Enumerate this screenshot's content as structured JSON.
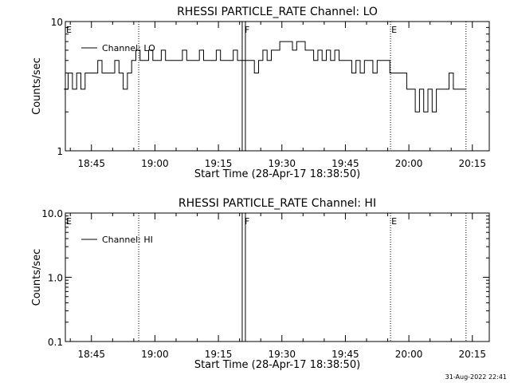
{
  "timestamp": "31-Aug-2022 22:41",
  "chart_data": [
    {
      "type": "line",
      "title": "RHESSI PARTICLE_RATE Channel: LO",
      "xlabel": "Start Time (28-Apr-17 18:38:50)",
      "ylabel": "Counts/sec",
      "y_scale": "log",
      "ylim": [
        1,
        10
      ],
      "y_ticks": [
        1,
        10
      ],
      "y_tick_labels": [
        "1",
        "10"
      ],
      "xlim": [
        "18:38:50",
        "20:19:00"
      ],
      "x_ticks": [
        "18:45",
        "19:00",
        "19:15",
        "19:30",
        "19:45",
        "20:00",
        "20:15"
      ],
      "legend": {
        "entries": [
          "Channel: LO"
        ],
        "placement": "top-left"
      },
      "series": [
        {
          "name": "Channel: LO",
          "x": [
            "18:39",
            "18:40",
            "18:41",
            "18:42",
            "18:43",
            "18:44",
            "18:45",
            "18:46",
            "18:47",
            "18:48",
            "18:49",
            "18:50",
            "18:51",
            "18:52",
            "18:53",
            "18:54",
            "18:55",
            "18:56",
            "18:57",
            "18:58",
            "18:59",
            "19:00",
            "19:01",
            "19:02",
            "19:03",
            "19:04",
            "19:05",
            "19:06",
            "19:07",
            "19:08",
            "19:09",
            "19:10",
            "19:11",
            "19:12",
            "19:13",
            "19:14",
            "19:15",
            "19:16",
            "19:17",
            "19:18",
            "19:19",
            "19:20",
            "19:21",
            "19:22",
            "19:23",
            "19:24",
            "19:25",
            "19:26",
            "19:27",
            "19:28",
            "19:29",
            "19:30",
            "19:31",
            "19:32",
            "19:33",
            "19:34",
            "19:35",
            "19:36",
            "19:37",
            "19:38",
            "19:39",
            "19:40",
            "19:41",
            "19:42",
            "19:43",
            "19:44",
            "19:45",
            "19:46",
            "19:47",
            "19:48",
            "19:49",
            "19:50",
            "19:51",
            "19:52",
            "19:53",
            "19:54",
            "19:55",
            "19:56",
            "19:57",
            "19:58",
            "19:59",
            "20:00",
            "20:01",
            "20:02",
            "20:03",
            "20:04",
            "20:05",
            "20:06",
            "20:07",
            "20:08",
            "20:09",
            "20:10",
            "20:11",
            "20:12",
            "20:13"
          ],
          "values": [
            3,
            4,
            3,
            4,
            3,
            4,
            4,
            4,
            5,
            4,
            4,
            4,
            5,
            4,
            3,
            4,
            5,
            6,
            5,
            5,
            6,
            5,
            5,
            6,
            5,
            5,
            5,
            5,
            6,
            5,
            5,
            5,
            6,
            5,
            5,
            5,
            6,
            5,
            5,
            5,
            6,
            5,
            5,
            5,
            5,
            4,
            5,
            6,
            5,
            6,
            6,
            7,
            7,
            7,
            6,
            7,
            7,
            6,
            6,
            5,
            6,
            5,
            6,
            5,
            6,
            5,
            5,
            5,
            4,
            5,
            4,
            5,
            5,
            4,
            5,
            5,
            5,
            4,
            4,
            4,
            4,
            3,
            3,
            2,
            3,
            2,
            3,
            2,
            3,
            3,
            3,
            4,
            3,
            3,
            3
          ]
        }
      ],
      "annotations": [
        {
          "label": "E",
          "time": "18:38:50"
        },
        {
          "label": "",
          "time": "18:56:10"
        },
        {
          "label": "F",
          "time": "19:21:00"
        },
        {
          "label": "E",
          "time": "19:55:40"
        },
        {
          "label": "",
          "time": "20:13:30"
        }
      ]
    },
    {
      "type": "line",
      "title": "RHESSI PARTICLE_RATE Channel: HI",
      "xlabel": "Start Time (28-Apr-17 18:38:50)",
      "ylabel": "Counts/sec",
      "y_scale": "log",
      "ylim": [
        0.1,
        10
      ],
      "y_ticks": [
        0.1,
        1,
        10
      ],
      "y_tick_labels": [
        "0.1",
        "1.0",
        "10.0"
      ],
      "xlim": [
        "18:38:50",
        "20:19:00"
      ],
      "x_ticks": [
        "18:45",
        "19:00",
        "19:15",
        "19:30",
        "19:45",
        "20:00",
        "20:15"
      ],
      "legend": {
        "entries": [
          "Channel: HI"
        ],
        "placement": "top-left"
      },
      "series": [
        {
          "name": "Channel: HI",
          "x": [],
          "values": []
        }
      ],
      "annotations": [
        {
          "label": "E",
          "time": "18:38:50"
        },
        {
          "label": "",
          "time": "18:56:10"
        },
        {
          "label": "F",
          "time": "19:21:00"
        },
        {
          "label": "E",
          "time": "19:55:40"
        },
        {
          "label": "",
          "time": "20:13:30"
        }
      ]
    }
  ]
}
